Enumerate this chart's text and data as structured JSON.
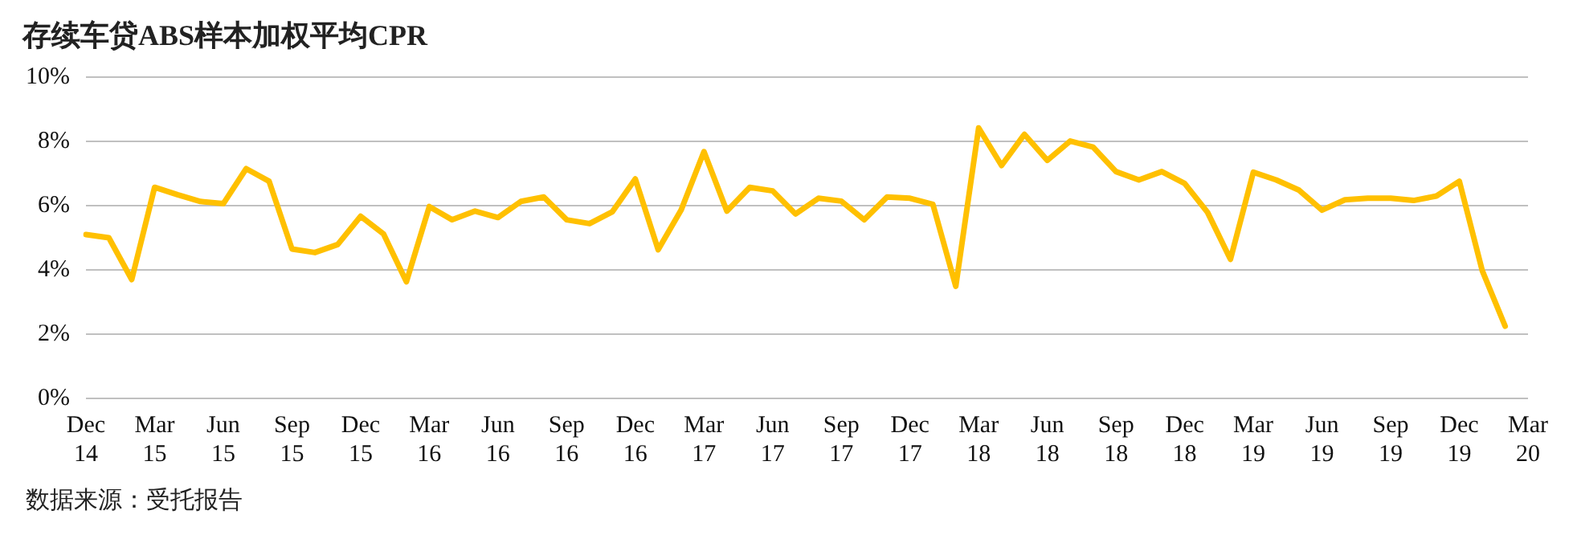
{
  "chart_data": {
    "type": "line",
    "title": "存续车贷ABS样本加权平均CPR",
    "categories": [
      "Dec 14",
      null,
      null,
      "Mar 15",
      null,
      null,
      "Jun 15",
      null,
      null,
      "Sep 15",
      null,
      null,
      "Dec 15",
      null,
      null,
      "Mar 16",
      null,
      null,
      "Jun 16",
      null,
      null,
      "Sep 16",
      null,
      null,
      "Dec 16",
      null,
      null,
      "Mar 17",
      null,
      null,
      "Jun 17",
      null,
      null,
      "Sep 17",
      null,
      null,
      "Dec 17",
      null,
      null,
      "Mar 18",
      null,
      null,
      "Jun 18",
      null,
      null,
      "Sep 18",
      null,
      null,
      "Dec 18",
      null,
      null,
      "Mar 19",
      null,
      null,
      "Jun 19",
      null,
      null,
      "Sep 19",
      null,
      null,
      "Dec 19",
      null,
      null,
      "Mar 20"
    ],
    "series": [
      {
        "color": "#ffc000",
        "values": [
          5.1,
          5.0,
          3.7,
          6.57,
          6.34,
          6.13,
          6.06,
          7.15,
          6.76,
          4.65,
          4.54,
          4.79,
          5.67,
          5.12,
          3.63,
          5.97,
          5.56,
          5.83,
          5.63,
          6.13,
          6.27,
          5.56,
          5.44,
          5.81,
          6.83,
          4.63,
          5.86,
          7.68,
          5.83,
          6.57,
          6.46,
          5.74,
          6.23,
          6.14,
          5.56,
          6.27,
          6.23,
          6.04,
          3.49,
          8.42,
          7.25,
          8.22,
          7.41,
          8.01,
          7.82,
          7.06,
          6.8,
          7.06,
          6.69,
          5.79,
          4.33,
          7.04,
          6.8,
          6.48,
          5.86,
          6.18,
          6.23,
          6.23,
          6.16,
          6.3,
          6.76,
          3.98,
          2.25,
          null
        ]
      }
    ],
    "ylim": [
      0,
      10
    ],
    "yticks": [
      {
        "value": 0,
        "label": "0%"
      },
      {
        "value": 2,
        "label": "2%"
      },
      {
        "value": 4,
        "label": "4%"
      },
      {
        "value": 6,
        "label": "6%"
      },
      {
        "value": 8,
        "label": "8%"
      },
      {
        "value": 10,
        "label": "10%"
      }
    ],
    "grid": "y",
    "legend": false,
    "marker": "none",
    "line_style": "solid",
    "annotations": [
      "数据来源：受托报告"
    ]
  }
}
